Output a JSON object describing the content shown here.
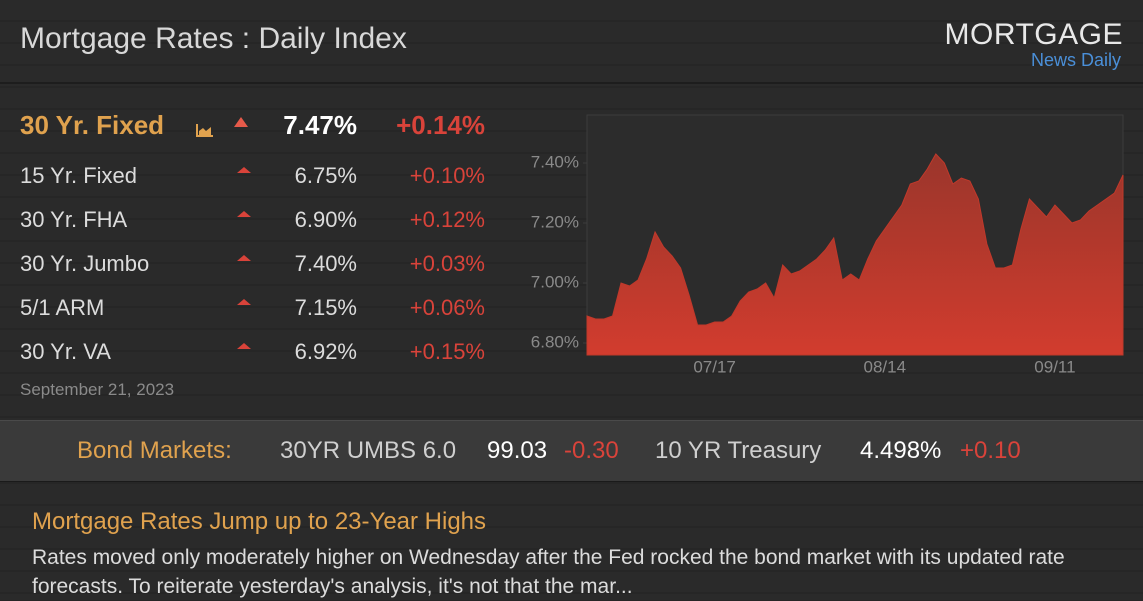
{
  "header": {
    "title": "Mortgage Rates : Daily Index",
    "logo": "MORTGAGE",
    "logo_sub": "News Daily"
  },
  "rates": [
    {
      "product": "30 Yr. Fixed",
      "rate": "7.47%",
      "change": "+0.14%"
    },
    {
      "product": "15 Yr. Fixed",
      "rate": "6.75%",
      "change": "+0.10%"
    },
    {
      "product": "30 Yr. FHA",
      "rate": "6.90%",
      "change": "+0.12%"
    },
    {
      "product": "30 Yr. Jumbo",
      "rate": "7.40%",
      "change": "+0.03%"
    },
    {
      "product": "5/1 ARM",
      "rate": "7.15%",
      "change": "+0.06%"
    },
    {
      "product": "30 Yr. VA",
      "rate": "6.92%",
      "change": "+0.15%"
    }
  ],
  "date": "September 21, 2023",
  "chart_data": {
    "type": "area",
    "color": "#c0392b",
    "categories": [
      null,
      null,
      null,
      null,
      null,
      null,
      null,
      null,
      null,
      null,
      null,
      null,
      null,
      null,
      null,
      "07/17",
      null,
      null,
      null,
      null,
      null,
      null,
      null,
      null,
      null,
      null,
      null,
      null,
      null,
      null,
      null,
      null,
      null,
      null,
      null,
      "08/14",
      null,
      null,
      null,
      null,
      null,
      null,
      null,
      null,
      null,
      null,
      null,
      null,
      null,
      null,
      null,
      null,
      null,
      null,
      null,
      "09/11",
      null,
      null,
      null,
      null,
      null,
      null,
      null,
      null
    ],
    "values": [
      6.89,
      6.88,
      6.88,
      6.89,
      7.0,
      6.99,
      7.01,
      7.08,
      7.17,
      7.12,
      7.09,
      7.05,
      6.96,
      6.86,
      6.86,
      6.87,
      6.87,
      6.89,
      6.94,
      6.97,
      6.98,
      7.0,
      6.95,
      7.06,
      7.03,
      7.04,
      7.06,
      7.08,
      7.11,
      7.15,
      7.01,
      7.03,
      7.01,
      7.08,
      7.14,
      7.18,
      7.22,
      7.26,
      7.33,
      7.34,
      7.38,
      7.43,
      7.4,
      7.33,
      7.35,
      7.34,
      7.28,
      7.13,
      7.05,
      7.05,
      7.06,
      7.18,
      7.28,
      7.25,
      7.22,
      7.26,
      7.23,
      7.2,
      7.21,
      7.24,
      7.26,
      7.28,
      7.3,
      7.36
    ],
    "ylim": [
      6.76,
      7.56
    ],
    "yticks": [
      {
        "value": 6.8,
        "label": "6.80%"
      },
      {
        "value": 7.0,
        "label": "7.00%"
      },
      {
        "value": 7.2,
        "label": "7.20%"
      },
      {
        "value": 7.4,
        "label": "7.40%"
      }
    ]
  },
  "bond_markets": {
    "label": "Bond Markets:",
    "items": [
      {
        "name": "30YR UMBS 6.0",
        "value": "99.03",
        "change": "-0.30"
      },
      {
        "name": "10 YR Treasury",
        "value": "4.498%",
        "change": "+0.10"
      }
    ]
  },
  "news": {
    "headline": "Mortgage Rates Jump up to 23-Year Highs",
    "body": "Rates moved only moderately higher on Wednesday after the Fed rocked the bond market with its updated rate forecasts.  To reiterate yesterday's analysis, it's not that the mar..."
  }
}
